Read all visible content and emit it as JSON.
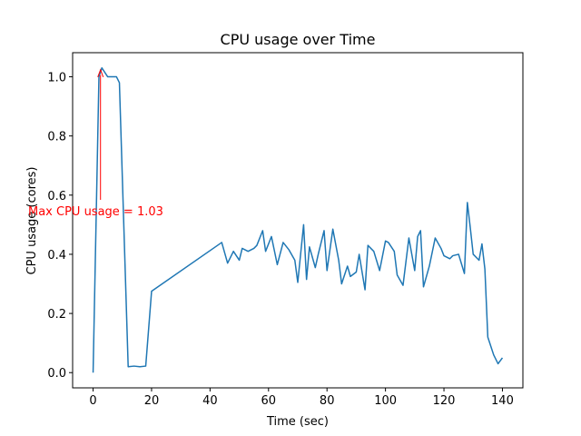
{
  "chart_data": {
    "type": "line",
    "title": "CPU usage over Time",
    "xlabel": "Time (sec)",
    "ylabel": "CPU usage (cores)",
    "annotation": "Max CPU usage = 1.03",
    "annotation_color": "#ff0000",
    "x": [
      0,
      2,
      3,
      5,
      7,
      8,
      9,
      12,
      14,
      16,
      18,
      20,
      44,
      46,
      48,
      50,
      51,
      53,
      55,
      56,
      58,
      59,
      61,
      63,
      65,
      67,
      69,
      70,
      72,
      73,
      74,
      76,
      77,
      79,
      80,
      82,
      84,
      85,
      87,
      88,
      90,
      91,
      93,
      94,
      96,
      98,
      100,
      101,
      103,
      104,
      106,
      108,
      110,
      111,
      112,
      113,
      115,
      117,
      119,
      120,
      122,
      123,
      125,
      127,
      128,
      129,
      130,
      132,
      133,
      134,
      135,
      137,
      138.5,
      140
    ],
    "series": [
      {
        "name": "CPU usage",
        "color": "#1f77b4",
        "values": [
          0,
          1.0,
          1.03,
          1.0,
          1.0,
          1.0,
          0.98,
          0.02,
          0.022,
          0.02,
          0.022,
          0.275,
          0.44,
          0.37,
          0.41,
          0.38,
          0.42,
          0.41,
          0.42,
          0.43,
          0.48,
          0.41,
          0.46,
          0.365,
          0.44,
          0.415,
          0.38,
          0.305,
          0.5,
          0.315,
          0.425,
          0.355,
          0.4,
          0.48,
          0.345,
          0.485,
          0.38,
          0.3,
          0.36,
          0.325,
          0.34,
          0.4,
          0.28,
          0.43,
          0.41,
          0.345,
          0.445,
          0.44,
          0.41,
          0.33,
          0.295,
          0.455,
          0.345,
          0.46,
          0.48,
          0.29,
          0.36,
          0.455,
          0.42,
          0.395,
          0.385,
          0.395,
          0.4,
          0.335,
          0.575,
          0.49,
          0.4,
          0.38,
          0.435,
          0.35,
          0.12,
          0.06,
          0.03,
          0.05
        ]
      }
    ],
    "xlim": [
      -7,
      147
    ],
    "ylim": [
      -0.0515,
      1.0815
    ],
    "xticks": [
      0,
      20,
      40,
      60,
      80,
      100,
      120,
      140
    ],
    "yticks": [
      {
        "value": 0,
        "label": "0.0"
      },
      0.2,
      0.4,
      0.6,
      0.8,
      {
        "value": 1,
        "label": "1.0"
      }
    ]
  }
}
